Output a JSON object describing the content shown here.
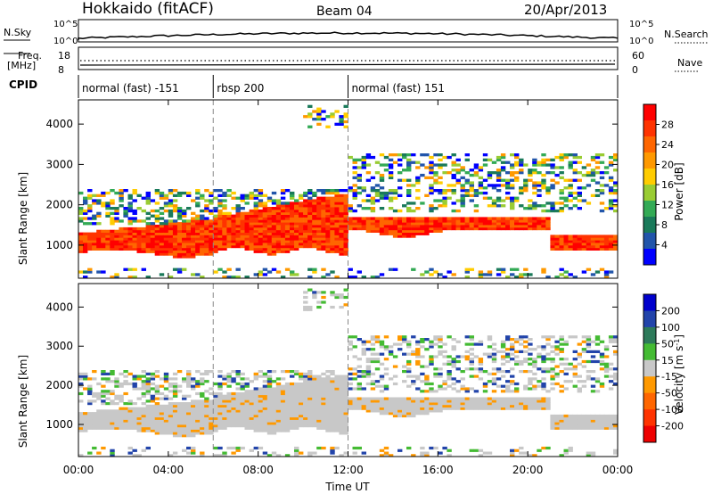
{
  "header": {
    "title": "Hokkaido (fitACF)",
    "beam": "Beam 04",
    "date": "20/Apr/2013"
  },
  "summary": {
    "nsky_label": "N.Sky",
    "nsky_ticks": [
      "10^5",
      "10^0"
    ],
    "nsearch_ticks": [
      "10^5",
      "10^0"
    ],
    "nsearch_label": "N.Search",
    "freq_label": "Freq.",
    "freq_unit": "[MHz]",
    "freq_ticks": [
      "18",
      "8"
    ],
    "nave_ticks": [
      "60",
      "0"
    ],
    "nave_label": "Nave",
    "cpid_label": "CPID"
  },
  "cpid_segments": [
    {
      "label": "normal (fast) -151",
      "start_h": 0,
      "end_h": 6
    },
    {
      "label": "rbsp 200",
      "start_h": 6,
      "end_h": 12
    },
    {
      "label": "normal (fast) 151",
      "start_h": 12,
      "end_h": 24
    }
  ],
  "x_axis": {
    "label": "Time UT",
    "ticks": [
      "00:00",
      "04:00",
      "08:00",
      "12:00",
      "16:00",
      "20:00",
      "00:00"
    ]
  },
  "chart_data": [
    {
      "type": "heatmap",
      "name": "power-panel",
      "ylabel": "Slant Range [km]",
      "xlim_h": [
        0,
        24
      ],
      "ylim_km": [
        180,
        4600
      ],
      "y_ticks": [
        1000,
        2000,
        3000,
        4000
      ],
      "colorbar": {
        "label": "Power [dB]",
        "ticks": [
          "28",
          "24",
          "20",
          "16",
          "12",
          "8",
          "4"
        ],
        "colors": [
          "#ff0000",
          "#ff3300",
          "#ff6600",
          "#ff9900",
          "#ffcc00",
          "#99cc33",
          "#33aa55",
          "#1a7a5a",
          "#2255aa",
          "#0000ff"
        ]
      },
      "regions": [
        {
          "t0": 0,
          "t1": 6,
          "r0": 800,
          "r1": 1400,
          "level": "high"
        },
        {
          "t0": 6,
          "t1": 12,
          "r0": 850,
          "r1": 2300,
          "level": "high"
        },
        {
          "t0": 12,
          "t1": 21,
          "r0": 1450,
          "r1": 1750,
          "level": "high"
        },
        {
          "t0": 21,
          "t1": 24,
          "r0": 900,
          "r1": 1250,
          "level": "high"
        },
        {
          "t0": 12,
          "t1": 24,
          "r0": 1800,
          "r1": 3300,
          "level": "low"
        }
      ]
    },
    {
      "type": "heatmap",
      "name": "velocity-panel",
      "ylabel": "Slant Range [km]",
      "xlim_h": [
        0,
        24
      ],
      "ylim_km": [
        180,
        4600
      ],
      "y_ticks": [
        1000,
        2000,
        3000,
        4000
      ],
      "colorbar": {
        "label": "Velocity [m s",
        "label_sup": "-1",
        "label_close": "]",
        "ticks": [
          "200",
          "100",
          "50",
          "15",
          "-15",
          "-50",
          "-100",
          "-200"
        ],
        "colors": [
          "#0000cc",
          "#2244aa",
          "#2d7a5a",
          "#44bb33",
          "#c8c8c8",
          "#ff9900",
          "#ff6600",
          "#ff3300",
          "#ee0000"
        ]
      }
    }
  ]
}
